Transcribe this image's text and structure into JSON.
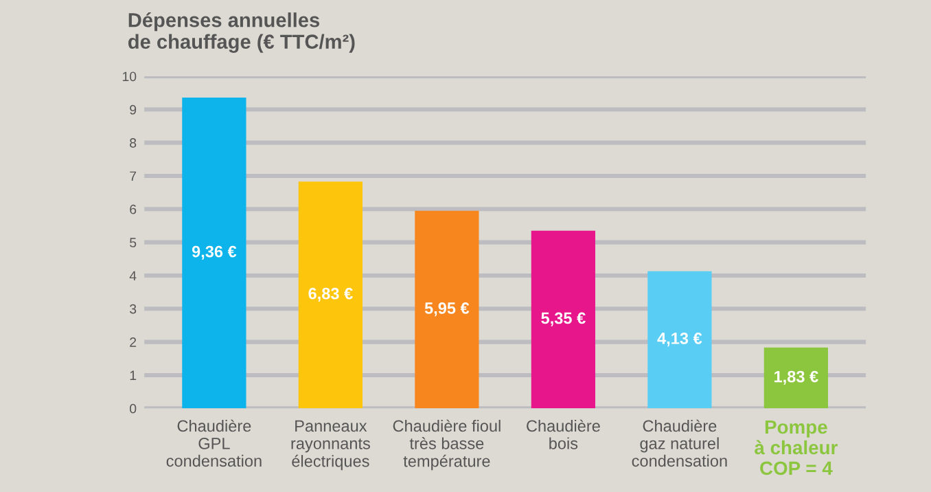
{
  "chart_data": {
    "type": "bar",
    "title": "Dépenses annuelles\nde chauffage (€ TTC/m²)",
    "categories": [
      "Chaudière\nGPL\ncondensation",
      "Panneaux\nrayonnants\nélectriques",
      "Chaudière fioul\ntrès basse\ntempérature",
      "Chaudière\nbois",
      "Chaudière\ngaz naturel\ncondensation",
      "Pompe\nà chaleur\nCOP = 4"
    ],
    "values": [
      9.36,
      6.83,
      5.95,
      5.35,
      4.13,
      1.83
    ],
    "value_labels": [
      "9,36 €",
      "6,83 €",
      "5,95 €",
      "5,35 €",
      "4,13 €",
      "1,83 €"
    ],
    "colors": [
      "#0db4ec",
      "#fdc50c",
      "#f7861e",
      "#e8168b",
      "#5acdf4",
      "#8cc63f"
    ],
    "ylim": [
      0,
      10
    ],
    "yticks": [
      0,
      1,
      2,
      3,
      4,
      5,
      6,
      7,
      8,
      9,
      10
    ],
    "grid": "y"
  }
}
